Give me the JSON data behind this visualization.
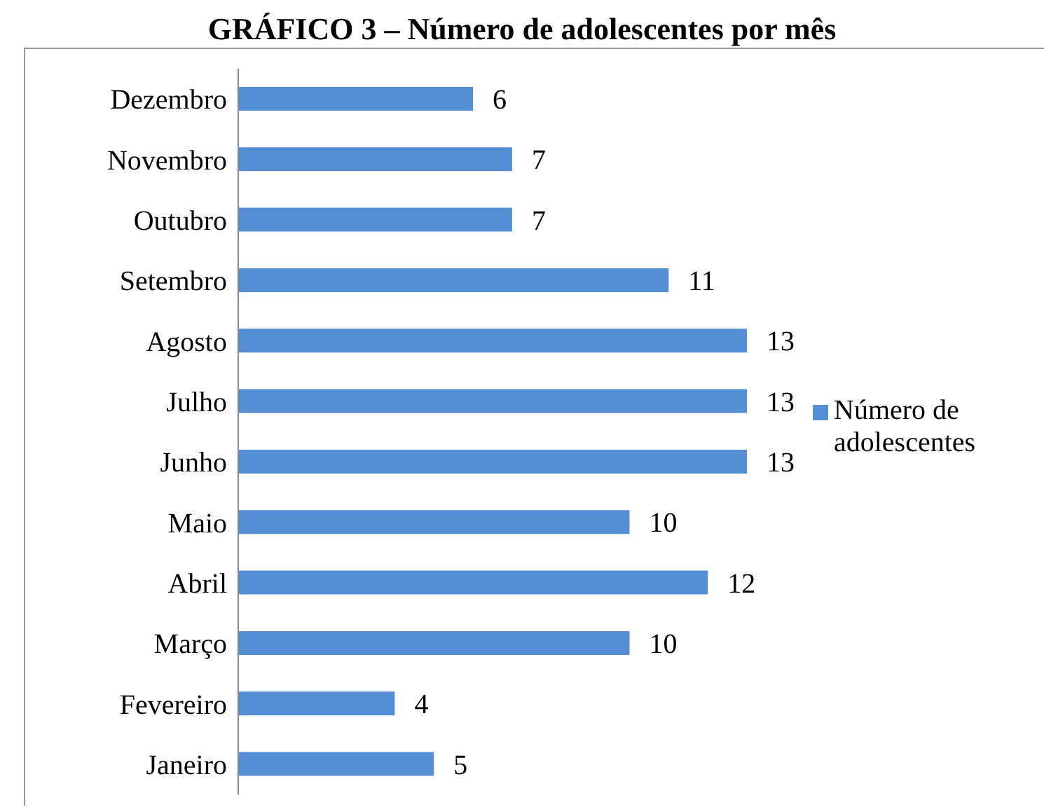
{
  "chart_data": {
    "type": "bar",
    "orientation": "horizontal",
    "title": "GRÁFICO 3 – Número de adolescentes por mês",
    "categories": [
      "Dezembro",
      "Novembro",
      "Outubro",
      "Setembro",
      "Agosto",
      "Julho",
      "Junho",
      "Maio",
      "Abril",
      "Março",
      "Fevereiro",
      "Janeiro"
    ],
    "series": [
      {
        "name": "Número de adolescentes",
        "color": "#558ed5",
        "values": [
          6,
          7,
          7,
          11,
          13,
          13,
          13,
          10,
          12,
          10,
          4,
          5
        ]
      }
    ],
    "data_labels": true,
    "legend": "right",
    "tick_labels": "y"
  }
}
